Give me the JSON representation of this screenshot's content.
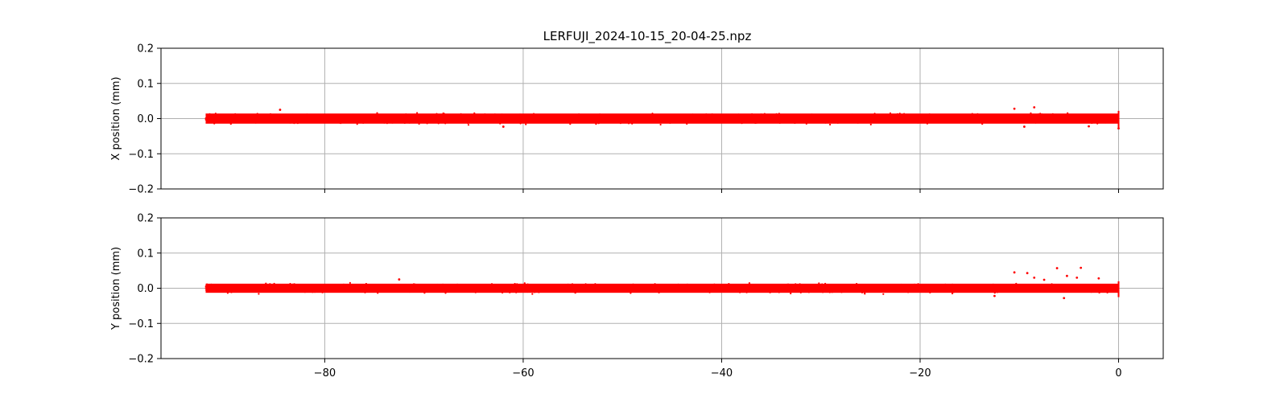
{
  "chart_data": [
    {
      "type": "scatter",
      "title": "LERFUJI_2024-10-15_20-04-25.npz",
      "xlabel": "",
      "ylabel": "X position (mm)",
      "xlim": [
        -96.5,
        4.5
      ],
      "ylim": [
        -0.2,
        0.2
      ],
      "xticks": [
        -80,
        -60,
        -40,
        -20,
        0
      ],
      "xtick_labels": [],
      "yticks": [
        -0.2,
        -0.1,
        0.0,
        0.1,
        0.2
      ],
      "ytick_labels": [
        "−0.2",
        "−0.1",
        "0.0",
        "0.1",
        "0.2"
      ],
      "grid": true,
      "series": [
        {
          "color": "#ff0000",
          "x_range": [
            -92,
            0
          ],
          "band": [
            -0.02,
            0.02
          ],
          "outliers": [
            {
              "x": -84.5,
              "y": 0.025
            },
            {
              "x": -62.0,
              "y": -0.023
            },
            {
              "x": -10.5,
              "y": 0.028
            },
            {
              "x": -8.5,
              "y": 0.032
            },
            {
              "x": -9.5,
              "y": -0.023
            },
            {
              "x": -3.0,
              "y": -0.022
            },
            {
              "x": 0.0,
              "y": -0.028
            }
          ]
        }
      ]
    },
    {
      "type": "scatter",
      "title": "",
      "xlabel": "",
      "ylabel": "Y position (mm)",
      "xlim": [
        -96.5,
        4.5
      ],
      "ylim": [
        -0.2,
        0.2
      ],
      "xticks": [
        -80,
        -60,
        -40,
        -20,
        0
      ],
      "xtick_labels": [
        "−80",
        "−60",
        "−40",
        "−20",
        "0"
      ],
      "yticks": [
        -0.2,
        -0.1,
        0.0,
        0.1,
        0.2
      ],
      "ytick_labels": [
        "−0.2",
        "−0.1",
        "0.0",
        "0.1",
        "0.2"
      ],
      "grid": true,
      "series": [
        {
          "color": "#ff0000",
          "x_range": [
            -92,
            0
          ],
          "band": [
            -0.018,
            0.018
          ],
          "outliers": [
            {
              "x": -72.5,
              "y": 0.025
            },
            {
              "x": -10.5,
              "y": 0.045
            },
            {
              "x": -9.2,
              "y": 0.043
            },
            {
              "x": -8.5,
              "y": 0.03
            },
            {
              "x": -6.2,
              "y": 0.057
            },
            {
              "x": -5.2,
              "y": 0.035
            },
            {
              "x": -4.2,
              "y": 0.03
            },
            {
              "x": -3.8,
              "y": 0.058
            },
            {
              "x": -7.5,
              "y": 0.024
            },
            {
              "x": -2.0,
              "y": 0.028
            },
            {
              "x": -5.5,
              "y": -0.028
            },
            {
              "x": -12.5,
              "y": -0.022
            }
          ]
        }
      ]
    }
  ]
}
